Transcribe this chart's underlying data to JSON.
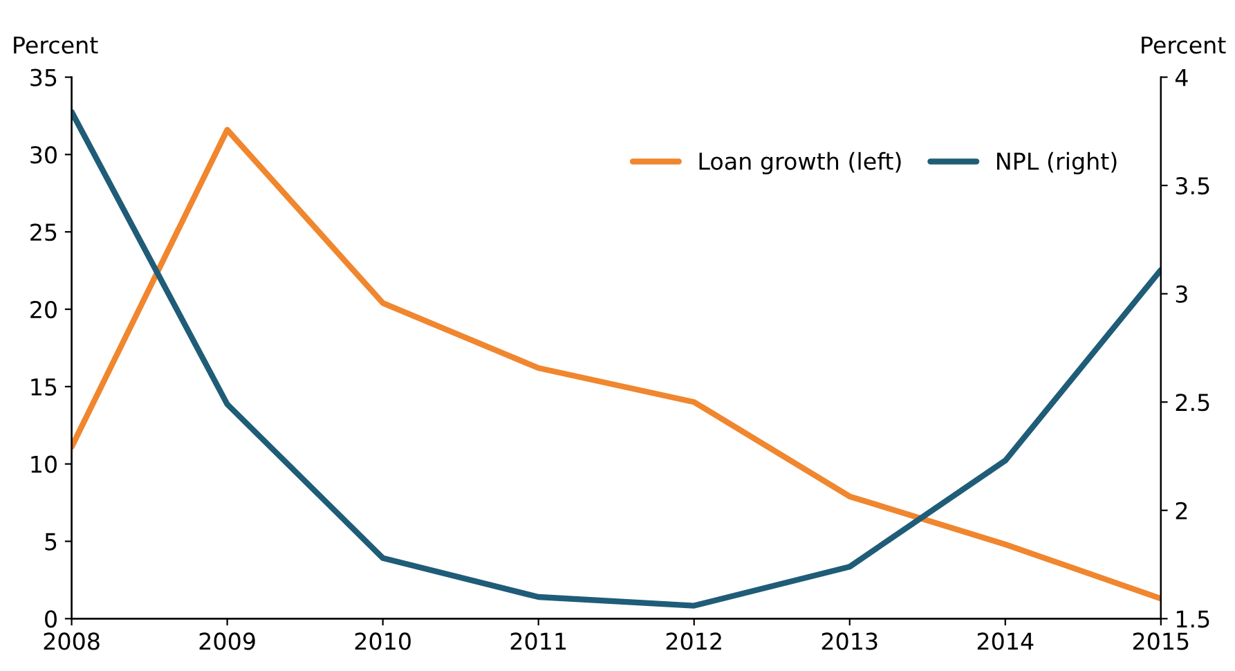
{
  "chart_data": {
    "type": "line",
    "ylabel": "Percent",
    "y2label": "Percent",
    "x": [
      2008,
      2009,
      2010,
      2011,
      2012,
      2013,
      2014,
      2015
    ],
    "xlim": [
      2008,
      2015
    ],
    "xticks": [
      2008,
      2009,
      2010,
      2011,
      2012,
      2013,
      2014,
      2015
    ],
    "ylim": [
      0,
      35
    ],
    "yticks": [
      0,
      5,
      10,
      15,
      20,
      25,
      30,
      35
    ],
    "y2lim": [
      1.5,
      4
    ],
    "y2ticks": [
      1.5,
      2,
      2.5,
      3,
      3.5,
      4
    ],
    "grid": false,
    "legend": "top right",
    "marker": "none",
    "line_style": "solid",
    "series": [
      {
        "name": "Loan growth (left)",
        "color": "#f0862e",
        "values": [
          11.1,
          31.6,
          20.4,
          16.2,
          14.0,
          7.9,
          4.8,
          1.3
        ]
      },
      {
        "name": "NPL (right)",
        "color": "#1f5c78",
        "axis": "y2",
        "values": [
          3.84,
          2.49,
          1.78,
          1.6,
          1.56,
          1.74,
          2.23,
          3.11
        ]
      }
    ]
  }
}
